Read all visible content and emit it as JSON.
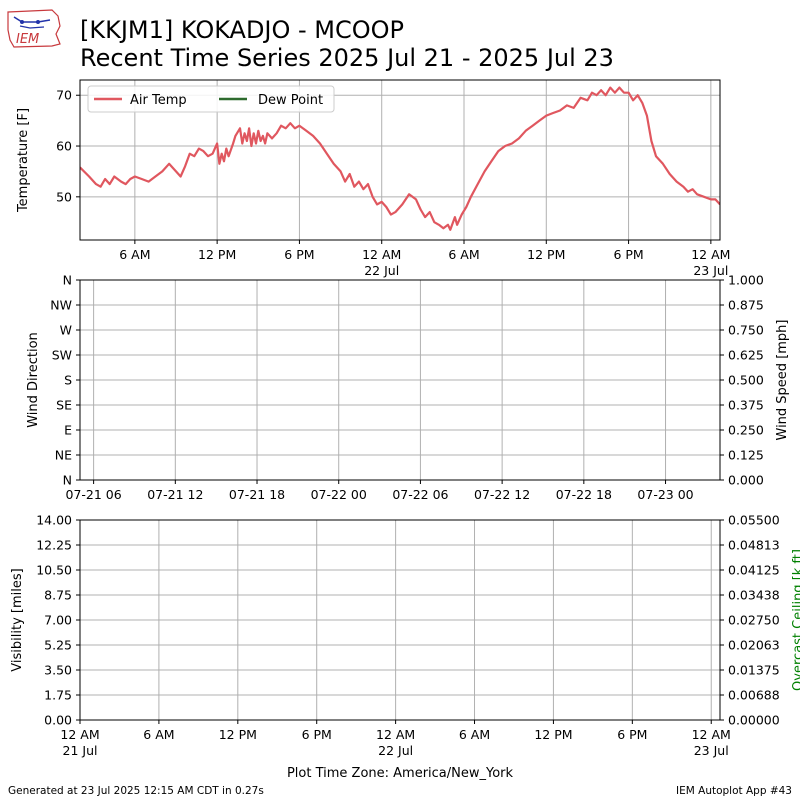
{
  "logo": {
    "text": "IEM"
  },
  "title": {
    "line1": "[KKJM1] KOKADJO - MCOOP",
    "line2": "Recent Time Series 2025 Jul 21 - 2025 Jul 23"
  },
  "footer": {
    "left": "Generated at 23 Jul 2025 12:15 AM CDT in 0.27s",
    "right": "IEM Autoplot App #43"
  },
  "chart_data": [
    {
      "type": "line",
      "ylabel": "Temperature [F]",
      "ylim": [
        41.5,
        73
      ],
      "yticks": [
        50,
        60,
        70
      ],
      "grid": true,
      "legend": {
        "placement": "top-left",
        "entries": [
          "Air Temp",
          "Dew Point"
        ]
      },
      "x_start": "2025-07-21 02:00",
      "x_end": "2025-07-23 00:40",
      "xticks": [
        {
          "time": "2025-07-21 06:00",
          "label": "6 AM",
          "sub": ""
        },
        {
          "time": "2025-07-21 12:00",
          "label": "12 PM",
          "sub": ""
        },
        {
          "time": "2025-07-21 18:00",
          "label": "6 PM",
          "sub": ""
        },
        {
          "time": "2025-07-22 00:00",
          "label": "12 AM",
          "sub": "22 Jul"
        },
        {
          "time": "2025-07-22 06:00",
          "label": "6 AM",
          "sub": ""
        },
        {
          "time": "2025-07-22 12:00",
          "label": "12 PM",
          "sub": ""
        },
        {
          "time": "2025-07-22 18:00",
          "label": "6 PM",
          "sub": ""
        },
        {
          "time": "2025-07-23 00:00",
          "label": "12 AM",
          "sub": "23 Jul"
        }
      ],
      "series": [
        {
          "name": "Air Temp",
          "color": "#e0575f",
          "points": [
            [
              "2025-07-21 02:00",
              55.8
            ],
            [
              "2025-07-21 02:40",
              54
            ],
            [
              "2025-07-21 03:10",
              52.5
            ],
            [
              "2025-07-21 03:30",
              52
            ],
            [
              "2025-07-21 03:50",
              53.5
            ],
            [
              "2025-07-21 04:10",
              52.5
            ],
            [
              "2025-07-21 04:30",
              54
            ],
            [
              "2025-07-21 05:00",
              53
            ],
            [
              "2025-07-21 05:20",
              52.5
            ],
            [
              "2025-07-21 05:40",
              53.5
            ],
            [
              "2025-07-21 06:00",
              54
            ],
            [
              "2025-07-21 06:30",
              53.5
            ],
            [
              "2025-07-21 07:00",
              53
            ],
            [
              "2025-07-21 07:30",
              54
            ],
            [
              "2025-07-21 08:00",
              55
            ],
            [
              "2025-07-21 08:30",
              56.5
            ],
            [
              "2025-07-21 09:00",
              55
            ],
            [
              "2025-07-21 09:20",
              54
            ],
            [
              "2025-07-21 09:40",
              56
            ],
            [
              "2025-07-21 10:00",
              58.5
            ],
            [
              "2025-07-21 10:20",
              58
            ],
            [
              "2025-07-21 10:40",
              59.5
            ],
            [
              "2025-07-21 11:00",
              59
            ],
            [
              "2025-07-21 11:20",
              58
            ],
            [
              "2025-07-21 11:40",
              58.5
            ],
            [
              "2025-07-21 12:00",
              60.5
            ],
            [
              "2025-07-21 12:10",
              56.5
            ],
            [
              "2025-07-21 12:20",
              58.5
            ],
            [
              "2025-07-21 12:30",
              57
            ],
            [
              "2025-07-21 12:40",
              59.5
            ],
            [
              "2025-07-21 12:50",
              58
            ],
            [
              "2025-07-21 13:10",
              60.5
            ],
            [
              "2025-07-21 13:20",
              62
            ],
            [
              "2025-07-21 13:40",
              63.5
            ],
            [
              "2025-07-21 13:50",
              60.5
            ],
            [
              "2025-07-21 14:00",
              62.5
            ],
            [
              "2025-07-21 14:10",
              61
            ],
            [
              "2025-07-21 14:20",
              63.5
            ],
            [
              "2025-07-21 14:30",
              60
            ],
            [
              "2025-07-21 14:40",
              62.5
            ],
            [
              "2025-07-21 14:50",
              60.5
            ],
            [
              "2025-07-21 15:00",
              63
            ],
            [
              "2025-07-21 15:10",
              61
            ],
            [
              "2025-07-21 15:20",
              62
            ],
            [
              "2025-07-21 15:30",
              60.5
            ],
            [
              "2025-07-21 15:40",
              62.5
            ],
            [
              "2025-07-21 16:00",
              61.5
            ],
            [
              "2025-07-21 16:20",
              62.5
            ],
            [
              "2025-07-21 16:40",
              64
            ],
            [
              "2025-07-21 17:00",
              63.5
            ],
            [
              "2025-07-21 17:20",
              64.5
            ],
            [
              "2025-07-21 17:40",
              63.5
            ],
            [
              "2025-07-21 18:00",
              64
            ],
            [
              "2025-07-21 18:30",
              63
            ],
            [
              "2025-07-21 19:00",
              62
            ],
            [
              "2025-07-21 19:30",
              60.5
            ],
            [
              "2025-07-21 20:00",
              58.5
            ],
            [
              "2025-07-21 20:30",
              56.5
            ],
            [
              "2025-07-21 21:00",
              55
            ],
            [
              "2025-07-21 21:20",
              53
            ],
            [
              "2025-07-21 21:40",
              54.5
            ],
            [
              "2025-07-21 22:00",
              52
            ],
            [
              "2025-07-21 22:20",
              53
            ],
            [
              "2025-07-21 22:40",
              51.5
            ],
            [
              "2025-07-21 23:00",
              52.5
            ],
            [
              "2025-07-21 23:20",
              50
            ],
            [
              "2025-07-21 23:40",
              48.5
            ],
            [
              "2025-07-22 00:00",
              49
            ],
            [
              "2025-07-22 00:20",
              48
            ],
            [
              "2025-07-22 00:40",
              46.5
            ],
            [
              "2025-07-22 01:00",
              47
            ],
            [
              "2025-07-22 01:30",
              48.5
            ],
            [
              "2025-07-22 02:00",
              50.5
            ],
            [
              "2025-07-22 02:30",
              49.5
            ],
            [
              "2025-07-22 02:50",
              47.5
            ],
            [
              "2025-07-22 03:10",
              46
            ],
            [
              "2025-07-22 03:30",
              47
            ],
            [
              "2025-07-22 03:50",
              45
            ],
            [
              "2025-07-22 04:10",
              44.5
            ],
            [
              "2025-07-22 04:30",
              43.8
            ],
            [
              "2025-07-22 04:50",
              44.5
            ],
            [
              "2025-07-22 05:00",
              43.5
            ],
            [
              "2025-07-22 05:20",
              46
            ],
            [
              "2025-07-22 05:30",
              44.5
            ],
            [
              "2025-07-22 05:50",
              46.5
            ],
            [
              "2025-07-22 06:10",
              48
            ],
            [
              "2025-07-22 06:30",
              50
            ],
            [
              "2025-07-22 07:00",
              52.5
            ],
            [
              "2025-07-22 07:30",
              55
            ],
            [
              "2025-07-22 08:00",
              57
            ],
            [
              "2025-07-22 08:30",
              59
            ],
            [
              "2025-07-22 09:00",
              60
            ],
            [
              "2025-07-22 09:30",
              60.5
            ],
            [
              "2025-07-22 10:00",
              61.5
            ],
            [
              "2025-07-22 10:30",
              63
            ],
            [
              "2025-07-22 11:00",
              64
            ],
            [
              "2025-07-22 11:30",
              65
            ],
            [
              "2025-07-22 12:00",
              66
            ],
            [
              "2025-07-22 12:30",
              66.5
            ],
            [
              "2025-07-22 13:00",
              67
            ],
            [
              "2025-07-22 13:30",
              68
            ],
            [
              "2025-07-22 14:00",
              67.5
            ],
            [
              "2025-07-22 14:30",
              69.5
            ],
            [
              "2025-07-22 15:00",
              69
            ],
            [
              "2025-07-22 15:20",
              70.5
            ],
            [
              "2025-07-22 15:40",
              70
            ],
            [
              "2025-07-22 16:00",
              71
            ],
            [
              "2025-07-22 16:20",
              70
            ],
            [
              "2025-07-22 16:40",
              71.5
            ],
            [
              "2025-07-22 17:00",
              70.5
            ],
            [
              "2025-07-22 17:20",
              71.5
            ],
            [
              "2025-07-22 17:40",
              70.5
            ],
            [
              "2025-07-22 18:00",
              70.5
            ],
            [
              "2025-07-22 18:20",
              69
            ],
            [
              "2025-07-22 18:40",
              70
            ],
            [
              "2025-07-22 19:00",
              68.5
            ],
            [
              "2025-07-22 19:20",
              66
            ],
            [
              "2025-07-22 19:40",
              61
            ],
            [
              "2025-07-22 20:00",
              58
            ],
            [
              "2025-07-22 20:30",
              56.5
            ],
            [
              "2025-07-22 21:00",
              54.5
            ],
            [
              "2025-07-22 21:30",
              53
            ],
            [
              "2025-07-22 22:00",
              52
            ],
            [
              "2025-07-22 22:20",
              51
            ],
            [
              "2025-07-22 22:40",
              51.5
            ],
            [
              "2025-07-22 23:00",
              50.5
            ],
            [
              "2025-07-22 23:30",
              50
            ],
            [
              "2025-07-23 00:00",
              49.5
            ],
            [
              "2025-07-23 00:20",
              49.5
            ],
            [
              "2025-07-23 00:40",
              48.5
            ]
          ]
        },
        {
          "name": "Dew Point",
          "color": "#2d6a2d",
          "points": []
        }
      ]
    },
    {
      "type": "line",
      "ylabel": "Wind Direction",
      "ylabel_right": "Wind Speed [mph]",
      "yticklabels_left": [
        "N",
        "NE",
        "E",
        "SE",
        "S",
        "SW",
        "W",
        "NW",
        "N"
      ],
      "yticks_right": [
        "0.000",
        "0.125",
        "0.250",
        "0.375",
        "0.500",
        "0.625",
        "0.750",
        "0.875",
        "1.000"
      ],
      "ylim_right": [
        0,
        1
      ],
      "grid": true,
      "x_start": "2025-07-21 05:00",
      "x_end": "2025-07-23 04:00",
      "xticks": [
        {
          "time": "2025-07-21 06:00",
          "label": "07-21 06"
        },
        {
          "time": "2025-07-21 12:00",
          "label": "07-21 12"
        },
        {
          "time": "2025-07-21 18:00",
          "label": "07-21 18"
        },
        {
          "time": "2025-07-22 00:00",
          "label": "07-22 00"
        },
        {
          "time": "2025-07-22 06:00",
          "label": "07-22 06"
        },
        {
          "time": "2025-07-22 12:00",
          "label": "07-22 12"
        },
        {
          "time": "2025-07-22 18:00",
          "label": "07-22 18"
        },
        {
          "time": "2025-07-23 00:00",
          "label": "07-23 00"
        }
      ],
      "series": []
    },
    {
      "type": "line",
      "ylabel": "Visibility [miles]",
      "ylabel_right": "Overcast Ceiling [k ft]",
      "ylabel_right_color": "#008000",
      "yticks_left": [
        "0.00",
        "1.75",
        "3.50",
        "5.25",
        "7.00",
        "8.75",
        "10.50",
        "12.25",
        "14.00"
      ],
      "ylim": [
        0,
        14
      ],
      "yticks_right": [
        "0.00000",
        "0.00688",
        "0.01375",
        "0.02063",
        "0.02750",
        "0.03438",
        "0.04125",
        "0.04813",
        "0.05500"
      ],
      "ylim_right": [
        0,
        0.055
      ],
      "grid": true,
      "x_start": "2025-07-21 00:00",
      "x_end": "2025-07-23 00:40",
      "xlabel": "Plot Time Zone: America/New_York",
      "xticks": [
        {
          "time": "2025-07-21 00:00",
          "label": "12 AM",
          "sub": "21 Jul"
        },
        {
          "time": "2025-07-21 06:00",
          "label": "6 AM",
          "sub": ""
        },
        {
          "time": "2025-07-21 12:00",
          "label": "12 PM",
          "sub": ""
        },
        {
          "time": "2025-07-21 18:00",
          "label": "6 PM",
          "sub": ""
        },
        {
          "time": "2025-07-22 00:00",
          "label": "12 AM",
          "sub": "22 Jul"
        },
        {
          "time": "2025-07-22 06:00",
          "label": "6 AM",
          "sub": ""
        },
        {
          "time": "2025-07-22 12:00",
          "label": "12 PM",
          "sub": ""
        },
        {
          "time": "2025-07-22 18:00",
          "label": "6 PM",
          "sub": ""
        },
        {
          "time": "2025-07-23 00:00",
          "label": "12 AM",
          "sub": "23 Jul"
        }
      ],
      "series": []
    }
  ]
}
